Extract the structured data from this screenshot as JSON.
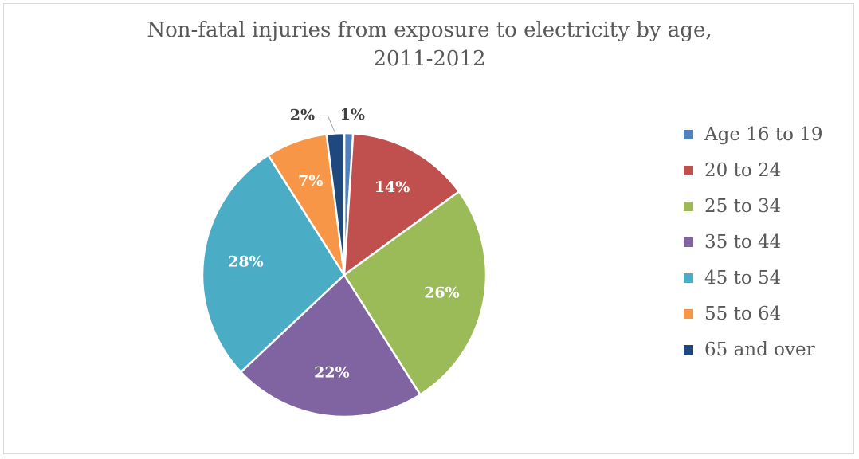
{
  "chart_data": {
    "type": "pie",
    "title": [
      "Non-fatal injuries from exposure to electricity by age,",
      "2011-2012"
    ],
    "categories": [
      "Age 16 to 19",
      "20 to 24",
      "25 to 34",
      "35 to 44",
      "45 to 54",
      "55 to 64",
      "65 and over"
    ],
    "values": [
      1,
      14,
      26,
      22,
      28,
      7,
      2
    ],
    "data_labels": [
      "1%",
      "14%",
      "26%",
      "22%",
      "28%",
      "7%",
      "2%"
    ],
    "colors": [
      "#4f81bd",
      "#c0504d",
      "#9bbb59",
      "#8064a2",
      "#4bacc6",
      "#f79646",
      "#1f497d"
    ],
    "label_colors": [
      "#404040",
      "#ffffff",
      "#ffffff",
      "#ffffff",
      "#ffffff",
      "#ffffff",
      "#404040"
    ],
    "legend_position": "right"
  }
}
